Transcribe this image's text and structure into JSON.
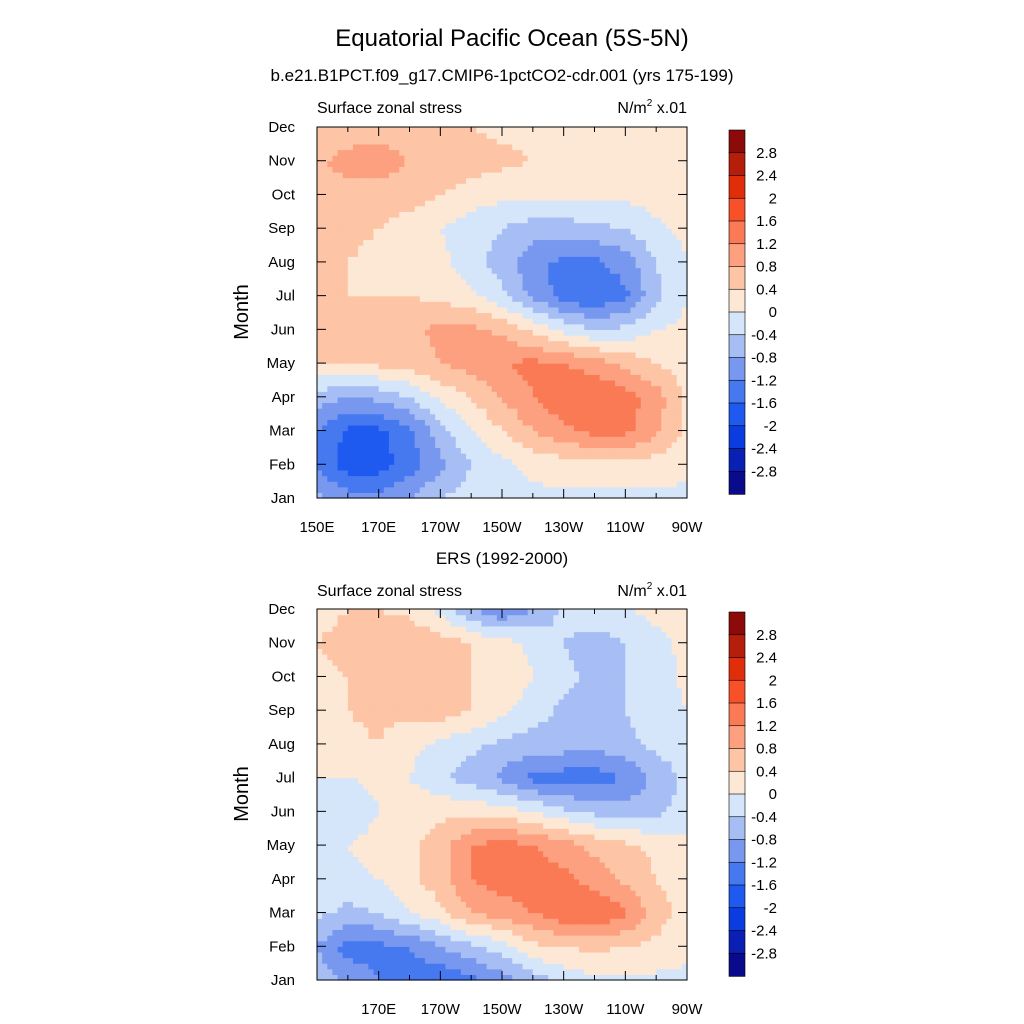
{
  "figure": {
    "title": "Equatorial Pacific Ocean (5S-5N)",
    "subtitle_top": "b.e21.B1PCT.f09_g17.CMIP6-1pctCO2-cdr.001 (yrs 175-199)",
    "subtitle_bottom": "ERS (1992-2000)"
  },
  "palette": {
    "colors": [
      "#0a0a8c",
      "#0a1fb4",
      "#0a3ce0",
      "#1e5af0",
      "#4678f0",
      "#7898f0",
      "#a7bef5",
      "#d6e6fa",
      "#fde8d5",
      "#fdc5a5",
      "#fca080",
      "#fa7a55",
      "#f85028",
      "#e02e0a",
      "#b41e0a",
      "#8c0a0a"
    ],
    "levels": [
      -2.8,
      -2.4,
      -2,
      -1.6,
      -1.2,
      -0.8,
      -0.4,
      0,
      0.4,
      0.8,
      1.2,
      1.6,
      2,
      2.4,
      2.8
    ]
  },
  "chart_data": [
    {
      "type": "heatmap",
      "panel": "model",
      "left_label": "Surface zonal stress",
      "right_label": "N/m",
      "right_label_sup": "2",
      "right_label_suffix": " x.01",
      "ylabel": "Month",
      "xlabel": "",
      "x_ticks": [
        "150E",
        "170E",
        "170W",
        "150W",
        "130W",
        "110W",
        "90W"
      ],
      "x_tick_lon": [
        150,
        170,
        190,
        210,
        230,
        250,
        270
      ],
      "xlim": [
        150,
        270
      ],
      "y_ticks": [
        "Jan",
        "Feb",
        "Mar",
        "Apr",
        "May",
        "Jun",
        "Jul",
        "Aug",
        "Sep",
        "Oct",
        "Nov",
        "Dec"
      ],
      "ylim": [
        0,
        11
      ],
      "colorbar_labels": [
        "2.8",
        "2.4",
        "2",
        "1.6",
        "1.2",
        "0.8",
        "0.4",
        "0",
        "-0.4",
        "-0.8",
        "-1.2",
        "-1.6",
        "-2",
        "-2.4",
        "-2.8"
      ],
      "lon": [
        150,
        160,
        170,
        180,
        190,
        200,
        210,
        220,
        230,
        240,
        250,
        260,
        270
      ],
      "months": [
        "Jan",
        "Feb",
        "Mar",
        "Apr",
        "May",
        "Jun",
        "Jul",
        "Aug",
        "Sep",
        "Oct",
        "Nov",
        "Dec"
      ],
      "values": [
        [
          -0.7,
          -1.0,
          -1.1,
          -0.8,
          -0.4,
          -0.2,
          -0.1,
          -0.1,
          -0.1,
          -0.1,
          -0.1,
          -0.1,
          -0.1
        ],
        [
          -1.3,
          -1.8,
          -1.8,
          -1.4,
          -0.9,
          -0.4,
          -0.1,
          0.1,
          0.2,
          0.3,
          0.3,
          0.2,
          0.1
        ],
        [
          -1.2,
          -1.7,
          -1.7,
          -1.3,
          -0.6,
          0.0,
          0.4,
          0.8,
          1.1,
          1.3,
          1.3,
          0.9,
          0.3
        ],
        [
          -0.6,
          -0.8,
          -0.7,
          -0.4,
          0.1,
          0.4,
          0.8,
          1.2,
          1.5,
          1.6,
          1.4,
          1.0,
          0.3
        ],
        [
          0.4,
          0.4,
          0.5,
          0.6,
          0.8,
          1.0,
          1.2,
          1.3,
          1.2,
          1.0,
          0.7,
          0.4,
          0.2
        ],
        [
          0.5,
          0.5,
          0.6,
          0.7,
          0.9,
          0.9,
          0.7,
          0.3,
          -0.1,
          -0.4,
          -0.3,
          0.0,
          0.1
        ],
        [
          0.4,
          0.4,
          0.4,
          0.4,
          0.3,
          0.1,
          -0.3,
          -0.9,
          -1.4,
          -1.6,
          -1.3,
          -0.5,
          0.0
        ],
        [
          0.4,
          0.4,
          0.3,
          0.3,
          0.1,
          -0.2,
          -0.6,
          -1.1,
          -1.3,
          -1.3,
          -1.0,
          -0.4,
          0.0
        ],
        [
          0.5,
          0.5,
          0.4,
          0.2,
          0.0,
          -0.2,
          -0.4,
          -0.6,
          -0.6,
          -0.5,
          -0.4,
          -0.1,
          0.1
        ],
        [
          0.6,
          0.6,
          0.6,
          0.6,
          0.4,
          0.2,
          0.1,
          0.1,
          0.1,
          0.1,
          0.1,
          0.2,
          0.2
        ],
        [
          0.7,
          1.0,
          1.0,
          0.8,
          0.7,
          0.6,
          0.5,
          0.4,
          0.3,
          0.3,
          0.2,
          0.2,
          0.2
        ],
        [
          0.4,
          0.5,
          0.6,
          0.6,
          0.5,
          0.4,
          0.3,
          0.3,
          0.3,
          0.3,
          0.2,
          0.2,
          0.2
        ]
      ]
    },
    {
      "type": "heatmap",
      "panel": "observations",
      "left_label": "Surface zonal stress",
      "right_label": "N/m",
      "right_label_sup": "2",
      "right_label_suffix": " x.01",
      "ylabel": "Month",
      "xlabel": "",
      "x_ticks": [
        "170E",
        "170W",
        "150W",
        "130W",
        "110W",
        "90W"
      ],
      "x_tick_lon": [
        170,
        190,
        210,
        230,
        250,
        270
      ],
      "xlim": [
        150,
        270
      ],
      "y_ticks": [
        "Jan",
        "Feb",
        "Mar",
        "Apr",
        "May",
        "Jun",
        "Jul",
        "Aug",
        "Sep",
        "Oct",
        "Nov",
        "Dec"
      ],
      "ylim": [
        0,
        11
      ],
      "colorbar_labels": [
        "2.8",
        "2.4",
        "2",
        "1.6",
        "1.2",
        "0.8",
        "0.4",
        "0",
        "-0.4",
        "-0.8",
        "-1.2",
        "-1.6",
        "-2",
        "-2.4",
        "-2.8"
      ],
      "lon": [
        150,
        160,
        170,
        180,
        190,
        200,
        210,
        220,
        230,
        240,
        250,
        260,
        270
      ],
      "months": [
        "Jan",
        "Feb",
        "Mar",
        "Apr",
        "May",
        "Jun",
        "Jul",
        "Aug",
        "Sep",
        "Oct",
        "Nov",
        "Dec"
      ],
      "values": [
        [
          -0.5,
          -0.9,
          -1.2,
          -1.4,
          -1.6,
          -1.3,
          -1.0,
          -0.6,
          -0.3,
          -0.1,
          -0.1,
          -0.1,
          -0.1
        ],
        [
          -0.8,
          -1.4,
          -1.3,
          -1.2,
          -0.8,
          -0.5,
          -0.2,
          0.3,
          0.4,
          0.5,
          0.4,
          0.3,
          0.1
        ],
        [
          -0.3,
          -0.5,
          -0.4,
          0.0,
          0.3,
          0.8,
          1.0,
          1.2,
          1.5,
          1.6,
          1.3,
          0.6,
          0.2
        ],
        [
          -0.1,
          -0.2,
          0.0,
          0.3,
          0.6,
          1.2,
          1.4,
          1.4,
          1.3,
          1.0,
          0.7,
          0.4,
          0.2
        ],
        [
          -0.1,
          0.0,
          0.2,
          0.3,
          0.6,
          1.2,
          1.4,
          1.2,
          1.0,
          0.7,
          0.5,
          0.3,
          0.1
        ],
        [
          -0.3,
          -0.4,
          0.0,
          0.2,
          0.3,
          0.3,
          0.2,
          0.0,
          -0.3,
          -0.5,
          -0.6,
          -0.5,
          -0.2
        ],
        [
          0.0,
          0.0,
          0.1,
          0.0,
          -0.3,
          -0.6,
          -0.9,
          -1.3,
          -1.4,
          -1.4,
          -1.2,
          -0.7,
          -0.3
        ],
        [
          0.2,
          0.3,
          0.4,
          0.1,
          -0.1,
          -0.3,
          -0.5,
          -0.6,
          -0.6,
          -0.7,
          -0.5,
          -0.3,
          -0.1
        ],
        [
          0.3,
          0.4,
          0.5,
          0.5,
          0.6,
          0.4,
          0.1,
          -0.2,
          -0.5,
          -0.5,
          -0.4,
          -0.2,
          0.0
        ],
        [
          0.3,
          0.4,
          0.4,
          0.5,
          0.4,
          0.4,
          0.3,
          0.0,
          -0.3,
          -0.5,
          -0.4,
          -0.2,
          0.1
        ],
        [
          0.4,
          0.5,
          0.6,
          0.7,
          0.6,
          0.4,
          0.2,
          -0.1,
          -0.4,
          -0.6,
          -0.4,
          -0.1,
          0.1
        ],
        [
          0.3,
          0.4,
          0.4,
          0.3,
          -0.1,
          -0.8,
          -1.2,
          -0.8,
          -0.3,
          -0.1,
          0.0,
          0.1,
          0.2
        ]
      ]
    }
  ]
}
